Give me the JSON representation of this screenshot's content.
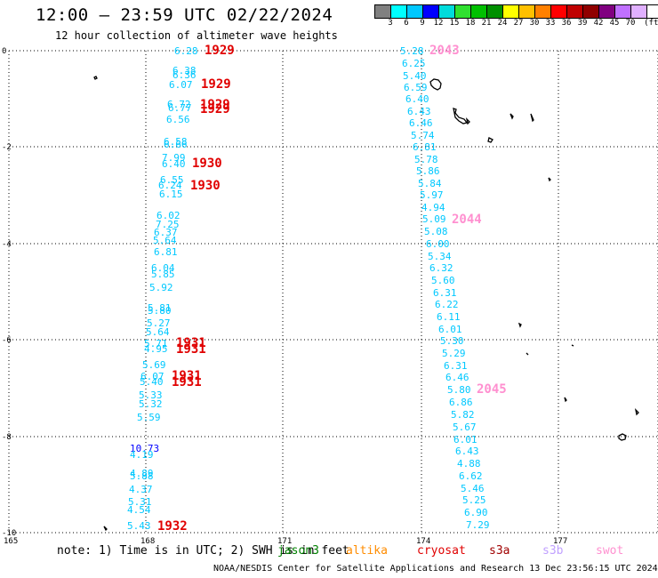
{
  "header": {
    "title": "12:00 — 23:59 UTC 02/22/2024",
    "subtitle": "12 hour collection of altimeter wave heights"
  },
  "colorbar": {
    "colors": [
      "#808080",
      "#00ffff",
      "#00c8ff",
      "#0000ff",
      "#00dcdc",
      "#30e030",
      "#00c000",
      "#009000",
      "#ffff00",
      "#ffc000",
      "#ff8000",
      "#ff0000",
      "#c00000",
      "#900000",
      "#800080",
      "#c070ff",
      "#e0b0ff",
      "#ffffff",
      "#000000"
    ],
    "labels": [
      "3",
      "6",
      "9",
      "12",
      "15",
      "18",
      "21",
      "24",
      "27",
      "30",
      "33",
      "36",
      "39",
      "42",
      "45",
      "70",
      "(ft)"
    ]
  },
  "axes": {
    "y_labels": [
      "0",
      "-2",
      "-4",
      "-6",
      "-8",
      "-10"
    ],
    "x_labels": [
      "165",
      "168",
      "171",
      "174",
      "177"
    ]
  },
  "track_left": {
    "values": [
      "6.28",
      "6.38",
      "6.36",
      "6.07",
      "6.72",
      "6.77",
      "6.56",
      "6.58",
      "6.66",
      "7.99",
      "6.40",
      "6.55",
      "6.24",
      "6.15",
      "6.02",
      "7.25",
      "6.37",
      "5.64",
      "6.81",
      "6.04",
      "5.85",
      "5.92",
      "5.81",
      "5.80",
      "5.27",
      "5.64",
      "5.71",
      "4.95",
      "5.69",
      "6.07",
      "5.40",
      "5.33",
      "5.32",
      "5.59",
      "10.73",
      "4.19",
      "4.89",
      "5.88",
      "4.37",
      "5.31",
      "4.54",
      "5.43"
    ],
    "times": [
      "1929",
      "1929",
      "1929",
      "1929",
      "1930",
      "1930",
      "1931",
      "1931",
      "1931",
      "1931",
      "1932"
    ]
  },
  "track_right": {
    "values": [
      "5.28",
      "6.25",
      "5.40",
      "6.59",
      "6.40",
      "6.43",
      "6.46",
      "5.74",
      "6.81",
      "5.78",
      "5.86",
      "5.84",
      "5.97",
      "4.94",
      "5.09",
      "5.08",
      "6.00",
      "5.34",
      "6.32",
      "5.60",
      "6.31",
      "6.22",
      "6.11",
      "6.01",
      "5.30",
      "5.29",
      "6.31",
      "6.46",
      "5.80",
      "6.86",
      "5.82",
      "5.67",
      "6.01",
      "6.43",
      "4.88",
      "6.62",
      "5.46",
      "5.25",
      "6.90",
      "7.29"
    ],
    "times": [
      "2043",
      "2044",
      "2045"
    ]
  },
  "note": {
    "text": "note: 1) Time is in UTC; 2) SWH is in feet",
    "satellites": [
      {
        "name": "jason3",
        "color": "#008000"
      },
      {
        "name": "altika",
        "color": "#ff8c00"
      },
      {
        "name": "cryosat",
        "color": "#e00000"
      },
      {
        "name": "s3a",
        "color": "#a00000"
      },
      {
        "name": "s3b",
        "color": "#c0a0ff"
      },
      {
        "name": "swot",
        "color": "#ff90d0"
      }
    ]
  },
  "footer": {
    "text": "NOAA/NESDIS Center for Satellite Applications and Research   13 Dec 23:56:15 UTC 2024"
  }
}
